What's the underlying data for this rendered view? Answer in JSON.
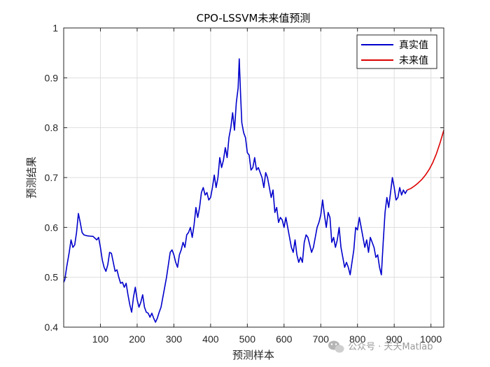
{
  "chart_data": {
    "type": "line",
    "title": "CPO-LSSVM未来值预测",
    "xlabel": "预测样本",
    "ylabel": "预测结果",
    "xlim": [
      0,
      1035
    ],
    "ylim": [
      0.4,
      1.0
    ],
    "xticks": [
      100,
      200,
      300,
      400,
      500,
      600,
      700,
      800,
      900,
      1000
    ],
    "yticks": [
      0.4,
      0.5,
      0.6,
      0.7,
      0.8,
      0.9,
      1.0
    ],
    "xtick_labels": [
      "100",
      "200",
      "300",
      "400",
      "500",
      "600",
      "700",
      "800",
      "900",
      "1000"
    ],
    "ytick_labels": [
      "0.4",
      "0.5",
      "0.6",
      "0.7",
      "0.8",
      "0.9",
      "1"
    ],
    "grid": true,
    "legend_position": "top-right",
    "series": [
      {
        "name": "真实值",
        "color": "#0000cc",
        "points": [
          [
            0,
            0.49
          ],
          [
            3,
            0.495
          ],
          [
            8,
            0.52
          ],
          [
            15,
            0.55
          ],
          [
            20,
            0.575
          ],
          [
            25,
            0.56
          ],
          [
            30,
            0.565
          ],
          [
            35,
            0.59
          ],
          [
            40,
            0.628
          ],
          [
            45,
            0.61
          ],
          [
            50,
            0.59
          ],
          [
            55,
            0.585
          ],
          [
            65,
            0.583
          ],
          [
            80,
            0.582
          ],
          [
            90,
            0.575
          ],
          [
            95,
            0.58
          ],
          [
            100,
            0.56
          ],
          [
            105,
            0.535
          ],
          [
            110,
            0.52
          ],
          [
            115,
            0.512
          ],
          [
            120,
            0.525
          ],
          [
            125,
            0.55
          ],
          [
            130,
            0.548
          ],
          [
            135,
            0.53
          ],
          [
            140,
            0.512
          ],
          [
            145,
            0.515
          ],
          [
            150,
            0.5
          ],
          [
            155,
            0.488
          ],
          [
            160,
            0.49
          ],
          [
            165,
            0.48
          ],
          [
            170,
            0.488
          ],
          [
            175,
            0.465
          ],
          [
            180,
            0.445
          ],
          [
            185,
            0.43
          ],
          [
            190,
            0.46
          ],
          [
            195,
            0.48
          ],
          [
            200,
            0.455
          ],
          [
            205,
            0.44
          ],
          [
            210,
            0.45
          ],
          [
            215,
            0.465
          ],
          [
            220,
            0.44
          ],
          [
            225,
            0.43
          ],
          [
            230,
            0.428
          ],
          [
            235,
            0.42
          ],
          [
            240,
            0.428
          ],
          [
            245,
            0.418
          ],
          [
            250,
            0.41
          ],
          [
            255,
            0.418
          ],
          [
            260,
            0.43
          ],
          [
            265,
            0.44
          ],
          [
            270,
            0.46
          ],
          [
            275,
            0.48
          ],
          [
            280,
            0.5
          ],
          [
            285,
            0.525
          ],
          [
            290,
            0.55
          ],
          [
            295,
            0.555
          ],
          [
            300,
            0.545
          ],
          [
            305,
            0.53
          ],
          [
            310,
            0.52
          ],
          [
            315,
            0.545
          ],
          [
            320,
            0.555
          ],
          [
            325,
            0.57
          ],
          [
            330,
            0.56
          ],
          [
            335,
            0.585
          ],
          [
            340,
            0.59
          ],
          [
            345,
            0.6
          ],
          [
            350,
            0.58
          ],
          [
            355,
            0.605
          ],
          [
            360,
            0.64
          ],
          [
            365,
            0.62
          ],
          [
            370,
            0.64
          ],
          [
            375,
            0.67
          ],
          [
            380,
            0.68
          ],
          [
            385,
            0.665
          ],
          [
            390,
            0.67
          ],
          [
            395,
            0.655
          ],
          [
            400,
            0.66
          ],
          [
            405,
            0.68
          ],
          [
            410,
            0.705
          ],
          [
            415,
            0.68
          ],
          [
            420,
            0.7
          ],
          [
            425,
            0.74
          ],
          [
            430,
            0.72
          ],
          [
            435,
            0.735
          ],
          [
            440,
            0.76
          ],
          [
            445,
            0.74
          ],
          [
            450,
            0.78
          ],
          [
            455,
            0.8
          ],
          [
            460,
            0.83
          ],
          [
            465,
            0.795
          ],
          [
            470,
            0.85
          ],
          [
            475,
            0.88
          ],
          [
            478,
            0.938
          ],
          [
            482,
            0.86
          ],
          [
            485,
            0.81
          ],
          [
            490,
            0.79
          ],
          [
            495,
            0.78
          ],
          [
            500,
            0.75
          ],
          [
            505,
            0.745
          ],
          [
            510,
            0.715
          ],
          [
            515,
            0.72
          ],
          [
            520,
            0.74
          ],
          [
            525,
            0.715
          ],
          [
            530,
            0.72
          ],
          [
            535,
            0.71
          ],
          [
            540,
            0.7
          ],
          [
            545,
            0.68
          ],
          [
            550,
            0.71
          ],
          [
            555,
            0.7
          ],
          [
            560,
            0.68
          ],
          [
            565,
            0.66
          ],
          [
            570,
            0.675
          ],
          [
            575,
            0.63
          ],
          [
            580,
            0.64
          ],
          [
            585,
            0.61
          ],
          [
            590,
            0.62
          ],
          [
            595,
            0.615
          ],
          [
            600,
            0.6
          ],
          [
            605,
            0.62
          ],
          [
            610,
            0.6
          ],
          [
            615,
            0.58
          ],
          [
            620,
            0.56
          ],
          [
            625,
            0.55
          ],
          [
            630,
            0.575
          ],
          [
            635,
            0.545
          ],
          [
            640,
            0.53
          ],
          [
            645,
            0.54
          ],
          [
            650,
            0.53
          ],
          [
            655,
            0.57
          ],
          [
            660,
            0.585
          ],
          [
            665,
            0.58
          ],
          [
            670,
            0.565
          ],
          [
            675,
            0.55
          ],
          [
            680,
            0.56
          ],
          [
            685,
            0.58
          ],
          [
            690,
            0.6
          ],
          [
            695,
            0.61
          ],
          [
            700,
            0.625
          ],
          [
            705,
            0.655
          ],
          [
            710,
            0.625
          ],
          [
            715,
            0.6
          ],
          [
            720,
            0.63
          ],
          [
            725,
            0.62
          ],
          [
            730,
            0.57
          ],
          [
            735,
            0.58
          ],
          [
            740,
            0.56
          ],
          [
            745,
            0.575
          ],
          [
            750,
            0.6
          ],
          [
            755,
            0.56
          ],
          [
            760,
            0.54
          ],
          [
            765,
            0.52
          ],
          [
            770,
            0.53
          ],
          [
            775,
            0.52
          ],
          [
            780,
            0.505
          ],
          [
            785,
            0.53
          ],
          [
            790,
            0.555
          ],
          [
            795,
            0.6
          ],
          [
            800,
            0.595
          ],
          [
            805,
            0.62
          ],
          [
            810,
            0.6
          ],
          [
            815,
            0.58
          ],
          [
            820,
            0.56
          ],
          [
            825,
            0.575
          ],
          [
            830,
            0.55
          ],
          [
            835,
            0.58
          ],
          [
            840,
            0.57
          ],
          [
            845,
            0.56
          ],
          [
            850,
            0.54
          ],
          [
            855,
            0.545
          ],
          [
            860,
            0.52
          ],
          [
            865,
            0.505
          ],
          [
            870,
            0.57
          ],
          [
            875,
            0.63
          ],
          [
            880,
            0.66
          ],
          [
            885,
            0.64
          ],
          [
            890,
            0.67
          ],
          [
            895,
            0.7
          ],
          [
            900,
            0.68
          ],
          [
            905,
            0.655
          ],
          [
            910,
            0.66
          ],
          [
            915,
            0.68
          ],
          [
            920,
            0.665
          ],
          [
            925,
            0.675
          ],
          [
            930,
            0.668
          ],
          [
            935,
            0.675
          ]
        ]
      },
      {
        "name": "未来值",
        "color": "#dd0000",
        "points": [
          [
            935,
            0.675
          ],
          [
            945,
            0.678
          ],
          [
            955,
            0.683
          ],
          [
            965,
            0.689
          ],
          [
            975,
            0.696
          ],
          [
            985,
            0.705
          ],
          [
            995,
            0.716
          ],
          [
            1005,
            0.73
          ],
          [
            1015,
            0.748
          ],
          [
            1025,
            0.77
          ],
          [
            1035,
            0.795
          ]
        ]
      }
    ]
  },
  "watermark": {
    "icon": "wechat-icon",
    "text": "公众号 · 天天Matlab"
  }
}
